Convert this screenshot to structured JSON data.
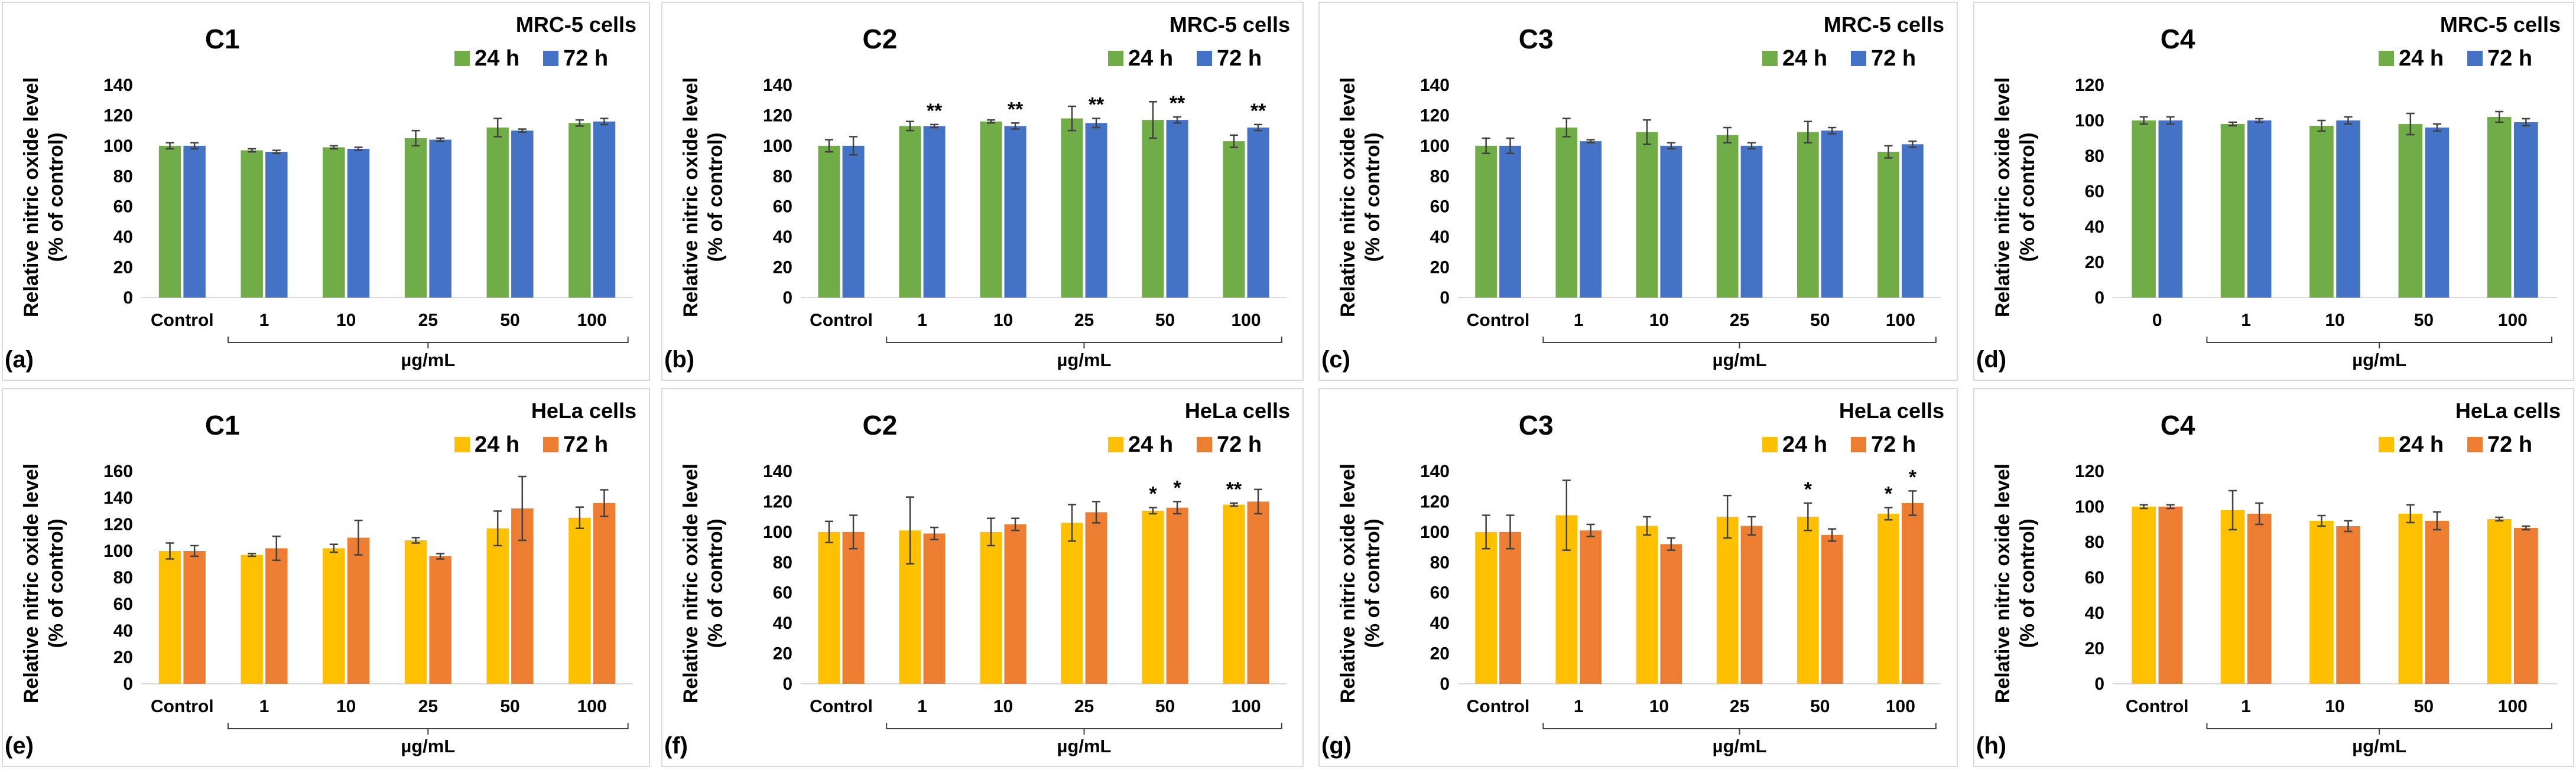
{
  "legend": {
    "h24": "24 h",
    "h72": "72 h"
  },
  "colors": {
    "green": "#70AD47",
    "blue": "#4472C4",
    "yellow": "#FFC000",
    "orange": "#ED7D31"
  },
  "ylabel_line1": "Relative nitric oxide level",
  "ylabel_line2": "(% of control)",
  "unit_label": "µg/mL",
  "chart_data": [
    {
      "type": "bar",
      "id": "a",
      "panel_letter": "(a)",
      "title": "C1",
      "cell_line": "MRC-5 cells",
      "categories": [
        "Control",
        "1",
        "10",
        "25",
        "50",
        "100"
      ],
      "ylim": [
        0,
        140
      ],
      "ystep": 20,
      "series": [
        {
          "name": "24 h",
          "values": [
            100,
            97,
            99,
            105,
            112,
            115
          ],
          "errors": [
            2,
            1,
            1,
            5,
            6,
            2
          ]
        },
        {
          "name": "72 h",
          "values": [
            100,
            96,
            98,
            104,
            110,
            116
          ],
          "errors": [
            2,
            1,
            1,
            1,
            1,
            2
          ]
        }
      ],
      "significance": [
        [
          "",
          "",
          "",
          "",
          "",
          ""
        ],
        [
          "",
          "",
          "",
          "",
          "",
          ""
        ]
      ]
    },
    {
      "type": "bar",
      "id": "b",
      "panel_letter": "(b)",
      "title": "C2",
      "cell_line": "MRC-5 cells",
      "categories": [
        "Control",
        "1",
        "10",
        "25",
        "50",
        "100"
      ],
      "ylim": [
        0,
        140
      ],
      "ystep": 20,
      "series": [
        {
          "name": "24 h",
          "values": [
            100,
            113,
            116,
            118,
            117,
            103
          ],
          "errors": [
            4,
            3,
            1,
            8,
            12,
            4
          ]
        },
        {
          "name": "72 h",
          "values": [
            100,
            113,
            113,
            115,
            117,
            112
          ],
          "errors": [
            6,
            1,
            2,
            3,
            2,
            2
          ]
        }
      ],
      "significance": [
        [
          "",
          "",
          "",
          "",
          "",
          ""
        ],
        [
          "",
          "**",
          "**",
          "**",
          "**",
          "**"
        ]
      ]
    },
    {
      "type": "bar",
      "id": "c",
      "panel_letter": "(c)",
      "title": "C3",
      "cell_line": "MRC-5 cells",
      "categories": [
        "Control",
        "1",
        "10",
        "25",
        "50",
        "100"
      ],
      "ylim": [
        0,
        140
      ],
      "ystep": 20,
      "series": [
        {
          "name": "24 h",
          "values": [
            100,
            112,
            109,
            107,
            109,
            96
          ],
          "errors": [
            5,
            6,
            8,
            5,
            7,
            4
          ]
        },
        {
          "name": "72 h",
          "values": [
            100,
            103,
            100,
            100,
            110,
            101
          ],
          "errors": [
            5,
            1,
            2,
            2,
            2,
            2
          ]
        }
      ],
      "significance": [
        [
          "",
          "",
          "",
          "",
          "",
          ""
        ],
        [
          "",
          "",
          "",
          "",
          "",
          ""
        ]
      ]
    },
    {
      "type": "bar",
      "id": "d",
      "panel_letter": "(d)",
      "title": "C4",
      "cell_line": "MRC-5 cells",
      "categories": [
        "0",
        "1",
        "10",
        "50",
        "100"
      ],
      "ylim": [
        0,
        120
      ],
      "ystep": 20,
      "series": [
        {
          "name": "24 h",
          "values": [
            100,
            98,
            97,
            98,
            102
          ],
          "errors": [
            2,
            1,
            3,
            6,
            3
          ]
        },
        {
          "name": "72 h",
          "values": [
            100,
            100,
            100,
            96,
            99
          ],
          "errors": [
            2,
            1,
            2,
            2,
            2
          ]
        }
      ],
      "significance": [
        [
          "",
          "",
          "",
          "",
          ""
        ],
        [
          "",
          "",
          "",
          "",
          ""
        ]
      ]
    },
    {
      "type": "bar",
      "id": "e",
      "panel_letter": "(e)",
      "title": "C1",
      "cell_line": "HeLa cells",
      "categories": [
        "Control",
        "1",
        "10",
        "25",
        "50",
        "100"
      ],
      "ylim": [
        0,
        160
      ],
      "ystep": 20,
      "series": [
        {
          "name": "24 h",
          "values": [
            100,
            97,
            102,
            108,
            117,
            125
          ],
          "errors": [
            6,
            1,
            3,
            2,
            13,
            8
          ]
        },
        {
          "name": "72 h",
          "values": [
            100,
            102,
            110,
            96,
            132,
            136
          ],
          "errors": [
            4,
            9,
            13,
            2,
            24,
            10
          ]
        }
      ],
      "significance": [
        [
          "",
          "",
          "",
          "",
          "",
          ""
        ],
        [
          "",
          "",
          "",
          "",
          "",
          ""
        ]
      ]
    },
    {
      "type": "bar",
      "id": "f",
      "panel_letter": "(f)",
      "title": "C2",
      "cell_line": "HeLa cells",
      "categories": [
        "Control",
        "1",
        "10",
        "25",
        "50",
        "100"
      ],
      "ylim": [
        0,
        140
      ],
      "ystep": 20,
      "series": [
        {
          "name": "24 h",
          "values": [
            100,
            101,
            100,
            106,
            114,
            118
          ],
          "errors": [
            7,
            22,
            9,
            12,
            2,
            1
          ]
        },
        {
          "name": "72 h",
          "values": [
            100,
            99,
            105,
            113,
            116,
            120
          ],
          "errors": [
            11,
            4,
            4,
            7,
            4,
            8
          ]
        }
      ],
      "significance": [
        [
          "",
          "",
          "",
          "",
          "*",
          "**"
        ],
        [
          "",
          "",
          "",
          "",
          "*",
          ""
        ]
      ]
    },
    {
      "type": "bar",
      "id": "g",
      "panel_letter": "(g)",
      "title": "C3",
      "cell_line": "HeLa cells",
      "categories": [
        "Control",
        "1",
        "10",
        "25",
        "50",
        "100"
      ],
      "ylim": [
        0,
        140
      ],
      "ystep": 20,
      "series": [
        {
          "name": "24 h",
          "values": [
            100,
            111,
            104,
            110,
            110,
            112
          ],
          "errors": [
            11,
            23,
            6,
            14,
            9,
            4
          ]
        },
        {
          "name": "72 h",
          "values": [
            100,
            101,
            92,
            104,
            98,
            119
          ],
          "errors": [
            11,
            4,
            4,
            6,
            4,
            8
          ]
        }
      ],
      "significance": [
        [
          "",
          "",
          "",
          "",
          "*",
          "*"
        ],
        [
          "",
          "",
          "",
          "",
          "",
          "*"
        ]
      ]
    },
    {
      "type": "bar",
      "id": "h",
      "panel_letter": "(h)",
      "title": "C4",
      "cell_line": "HeLa cells",
      "categories": [
        "Control",
        "1",
        "10",
        "50",
        "100"
      ],
      "ylim": [
        0,
        120
      ],
      "ystep": 20,
      "series": [
        {
          "name": "24 h",
          "values": [
            100,
            98,
            92,
            96,
            93
          ],
          "errors": [
            1,
            11,
            3,
            5,
            1
          ]
        },
        {
          "name": "72 h",
          "values": [
            100,
            96,
            89,
            92,
            88
          ],
          "errors": [
            1,
            6,
            3,
            5,
            1
          ]
        }
      ],
      "significance": [
        [
          "",
          "",
          "",
          "",
          ""
        ],
        [
          "",
          "",
          "",
          "",
          ""
        ]
      ]
    }
  ]
}
